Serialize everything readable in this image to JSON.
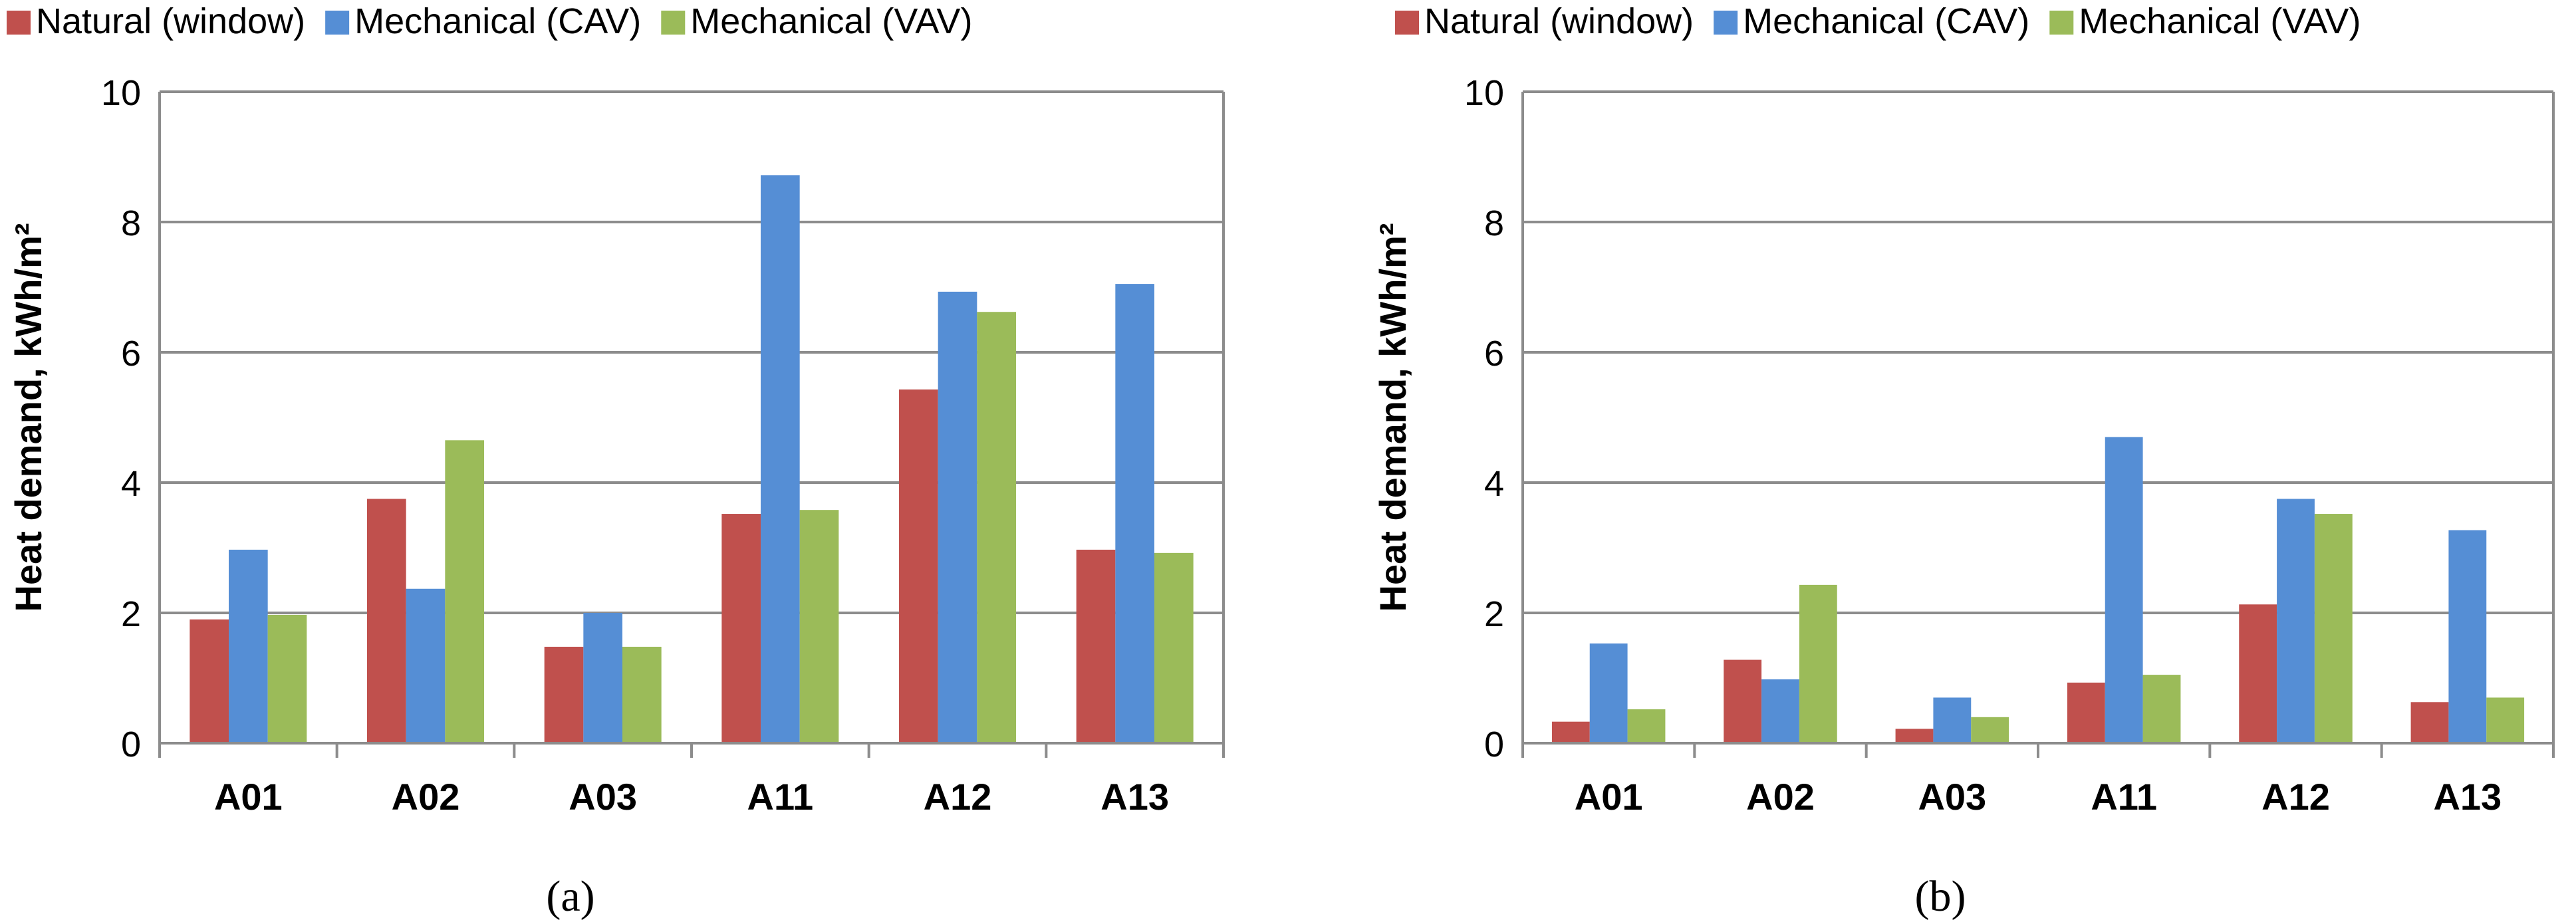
{
  "chart_data": [
    {
      "type": "bar",
      "panel_label": "(a)",
      "categories": [
        "A01",
        "A02",
        "A03",
        "A11",
        "A12",
        "A13"
      ],
      "series": [
        {
          "name": "Natural (window)",
          "color": "#c0504d",
          "values": [
            1.9,
            3.75,
            1.48,
            3.52,
            5.43,
            2.97
          ]
        },
        {
          "name": "Mechanical (CAV)",
          "color": "#558ed5",
          "values": [
            2.97,
            2.37,
            2.0,
            8.72,
            6.93,
            7.05
          ]
        },
        {
          "name": "Mechanical (VAV)",
          "color": "#9bbb59",
          "values": [
            1.97,
            4.65,
            1.48,
            3.58,
            6.62,
            2.92
          ]
        }
      ],
      "title": "",
      "xlabel": "",
      "ylabel": "Heat demand, kWh/m²",
      "ylim": [
        0,
        10
      ],
      "yticks": [
        0,
        2,
        4,
        6,
        8,
        10
      ],
      "grid": true,
      "legend": "top"
    },
    {
      "type": "bar",
      "panel_label": "(b)",
      "categories": [
        "A01",
        "A02",
        "A03",
        "A11",
        "A12",
        "A13"
      ],
      "series": [
        {
          "name": "Natural (window)",
          "color": "#c0504d",
          "values": [
            0.33,
            1.28,
            0.22,
            0.93,
            2.13,
            0.63
          ]
        },
        {
          "name": "Mechanical (CAV)",
          "color": "#558ed5",
          "values": [
            1.53,
            0.98,
            0.7,
            4.7,
            3.75,
            3.27
          ]
        },
        {
          "name": "Mechanical (VAV)",
          "color": "#9bbb59",
          "values": [
            0.52,
            2.43,
            0.4,
            1.05,
            3.52,
            0.7
          ]
        }
      ],
      "title": "",
      "xlabel": "",
      "ylabel": "Heat demand, kWh/m²",
      "ylim": [
        0,
        10
      ],
      "yticks": [
        0,
        2,
        4,
        6,
        8,
        10
      ],
      "grid": true,
      "legend": "top"
    }
  ]
}
